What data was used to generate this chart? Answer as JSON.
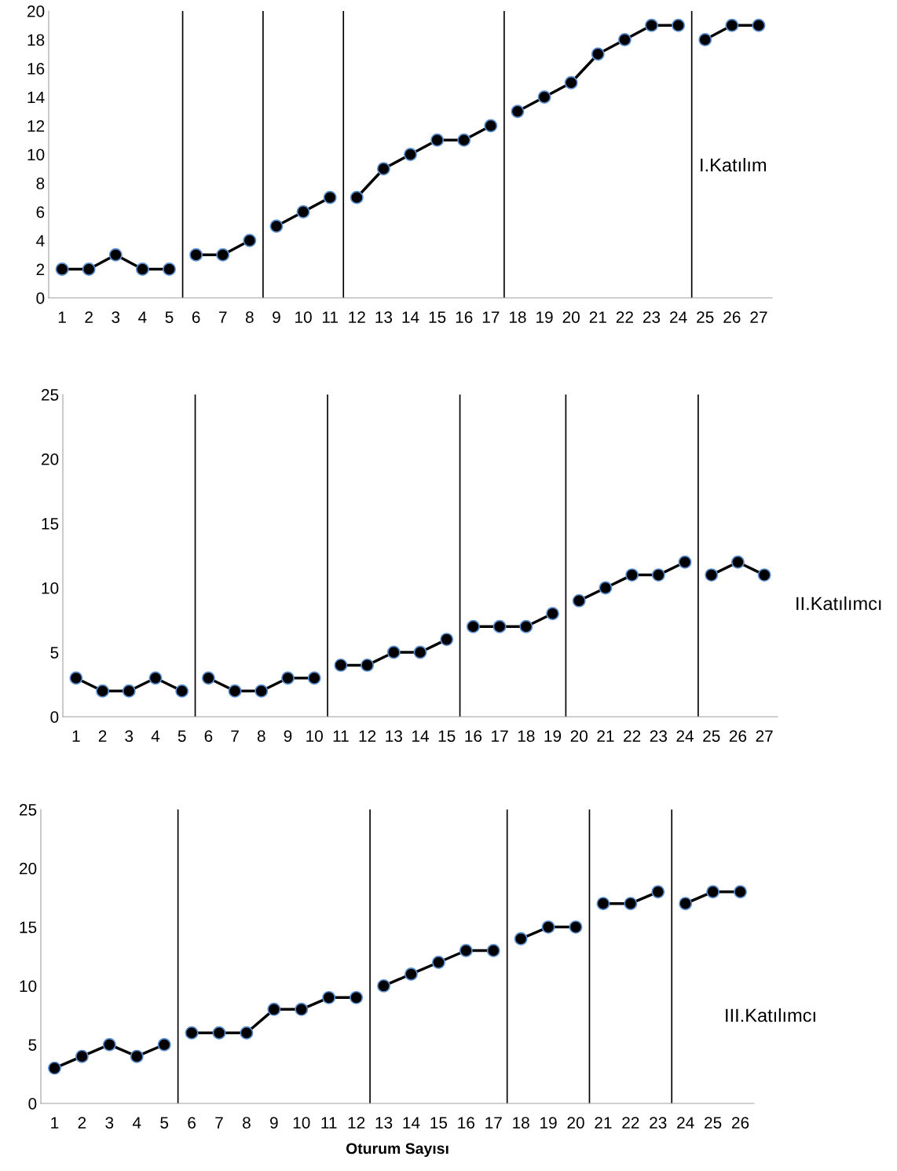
{
  "chart_data": [
    {
      "type": "line",
      "categories": [
        "1",
        "2",
        "3",
        "4",
        "5",
        "6",
        "7",
        "8",
        "9",
        "10",
        "11",
        "12",
        "13",
        "14",
        "15",
        "16",
        "17",
        "18",
        "19",
        "20",
        "21",
        "22",
        "23",
        "24",
        "25",
        "26",
        "27"
      ],
      "series": [
        {
          "color": "#000000",
          "values": [
            2,
            2,
            3,
            2,
            2,
            null,
            null,
            null,
            null,
            null,
            null,
            null,
            null,
            null,
            null,
            null,
            null,
            null,
            null,
            null,
            null,
            null,
            null,
            null,
            null,
            null,
            null
          ]
        },
        {
          "color": "#000000",
          "values": [
            null,
            null,
            null,
            null,
            null,
            3,
            3,
            4,
            null,
            null,
            null,
            null,
            null,
            null,
            null,
            null,
            null,
            null,
            null,
            null,
            null,
            null,
            null,
            null,
            null,
            null,
            null
          ]
        },
        {
          "color": "#000000",
          "values": [
            null,
            null,
            null,
            null,
            null,
            null,
            null,
            null,
            5,
            6,
            7,
            null,
            null,
            null,
            null,
            null,
            null,
            null,
            null,
            null,
            null,
            null,
            null,
            null,
            null,
            null,
            null
          ]
        },
        {
          "color": "#000000",
          "values": [
            null,
            null,
            null,
            null,
            null,
            null,
            null,
            null,
            null,
            null,
            null,
            7,
            9,
            10,
            11,
            11,
            12,
            null,
            null,
            null,
            null,
            null,
            null,
            null,
            null,
            null,
            null
          ]
        },
        {
          "color": "#000000",
          "values": [
            null,
            null,
            null,
            null,
            null,
            null,
            null,
            null,
            null,
            null,
            null,
            null,
            null,
            null,
            null,
            null,
            null,
            13,
            14,
            15,
            17,
            18,
            19,
            19,
            null,
            null,
            null
          ]
        },
        {
          "color": "#000000",
          "values": [
            null,
            null,
            null,
            null,
            null,
            null,
            null,
            null,
            null,
            null,
            null,
            null,
            null,
            null,
            null,
            null,
            null,
            null,
            null,
            null,
            null,
            null,
            null,
            null,
            18,
            19,
            19
          ]
        }
      ],
      "ylim": [
        0,
        20
      ],
      "yticks": [
        0,
        2,
        4,
        6,
        8,
        10,
        12,
        14,
        16,
        18,
        20
      ],
      "marker": "circle",
      "line_style": "solid",
      "grid": false,
      "legend": false,
      "annotations": [
        "I.Katılım"
      ]
    },
    {
      "type": "line",
      "categories": [
        "1",
        "2",
        "3",
        "4",
        "5",
        "6",
        "7",
        "8",
        "9",
        "10",
        "11",
        "12",
        "13",
        "14",
        "15",
        "16",
        "17",
        "18",
        "19",
        "20",
        "21",
        "22",
        "23",
        "24",
        "25",
        "26",
        "27"
      ],
      "series": [
        {
          "color": "#000000",
          "values": [
            3,
            2,
            2,
            3,
            2,
            null,
            null,
            null,
            null,
            null,
            null,
            null,
            null,
            null,
            null,
            null,
            null,
            null,
            null,
            null,
            null,
            null,
            null,
            null,
            null,
            null,
            null
          ]
        },
        {
          "color": "#000000",
          "values": [
            null,
            null,
            null,
            null,
            null,
            3,
            2,
            2,
            3,
            3,
            null,
            null,
            null,
            null,
            null,
            null,
            null,
            null,
            null,
            null,
            null,
            null,
            null,
            null,
            null,
            null,
            null
          ]
        },
        {
          "color": "#000000",
          "values": [
            null,
            null,
            null,
            null,
            null,
            null,
            null,
            null,
            null,
            null,
            4,
            4,
            5,
            5,
            6,
            null,
            null,
            null,
            null,
            null,
            null,
            null,
            null,
            null,
            null,
            null,
            null
          ]
        },
        {
          "color": "#000000",
          "values": [
            null,
            null,
            null,
            null,
            null,
            null,
            null,
            null,
            null,
            null,
            null,
            null,
            null,
            null,
            null,
            7,
            7,
            7,
            8,
            null,
            null,
            null,
            null,
            null,
            null,
            null,
            null
          ]
        },
        {
          "color": "#000000",
          "values": [
            null,
            null,
            null,
            null,
            null,
            null,
            null,
            null,
            null,
            null,
            null,
            null,
            null,
            null,
            null,
            null,
            null,
            null,
            null,
            9,
            10,
            11,
            11,
            12,
            null,
            null,
            null
          ]
        },
        {
          "color": "#000000",
          "values": [
            null,
            null,
            null,
            null,
            null,
            null,
            null,
            null,
            null,
            null,
            null,
            null,
            null,
            null,
            null,
            null,
            null,
            null,
            null,
            null,
            null,
            null,
            null,
            null,
            11,
            12,
            11
          ]
        }
      ],
      "ylim": [
        0,
        25
      ],
      "yticks": [
        0,
        5,
        10,
        15,
        20,
        25
      ],
      "marker": "circle",
      "line_style": "solid",
      "grid": false,
      "legend": false,
      "annotations": [
        "II.Katılımcı"
      ]
    },
    {
      "type": "line",
      "categories": [
        "1",
        "2",
        "3",
        "4",
        "5",
        "6",
        "7",
        "8",
        "9",
        "10",
        "11",
        "12",
        "13",
        "14",
        "15",
        "16",
        "17",
        "18",
        "19",
        "20",
        "21",
        "22",
        "23",
        "24",
        "25",
        "26"
      ],
      "series": [
        {
          "color": "#000000",
          "values": [
            3,
            4,
            5,
            4,
            5,
            null,
            null,
            null,
            null,
            null,
            null,
            null,
            null,
            null,
            null,
            null,
            null,
            null,
            null,
            null,
            null,
            null,
            null,
            null,
            null,
            null
          ]
        },
        {
          "color": "#000000",
          "values": [
            null,
            null,
            null,
            null,
            null,
            6,
            6,
            6,
            8,
            8,
            9,
            9,
            null,
            null,
            null,
            null,
            null,
            null,
            null,
            null,
            null,
            null,
            null,
            null,
            null,
            null
          ]
        },
        {
          "color": "#000000",
          "values": [
            null,
            null,
            null,
            null,
            null,
            null,
            null,
            null,
            null,
            null,
            null,
            null,
            10,
            11,
            12,
            13,
            13,
            null,
            null,
            null,
            null,
            null,
            null,
            null,
            null,
            null
          ]
        },
        {
          "color": "#000000",
          "values": [
            null,
            null,
            null,
            null,
            null,
            null,
            null,
            null,
            null,
            null,
            null,
            null,
            null,
            null,
            null,
            null,
            null,
            14,
            15,
            15,
            null,
            null,
            null,
            null,
            null,
            null
          ]
        },
        {
          "color": "#000000",
          "values": [
            null,
            null,
            null,
            null,
            null,
            null,
            null,
            null,
            null,
            null,
            null,
            null,
            null,
            null,
            null,
            null,
            null,
            null,
            null,
            null,
            17,
            17,
            18,
            null,
            null,
            null
          ]
        },
        {
          "color": "#000000",
          "values": [
            null,
            null,
            null,
            null,
            null,
            null,
            null,
            null,
            null,
            null,
            null,
            null,
            null,
            null,
            null,
            null,
            null,
            null,
            null,
            null,
            null,
            null,
            null,
            17,
            18,
            18
          ]
        }
      ],
      "ylim": [
        0,
        25
      ],
      "yticks": [
        0,
        5,
        10,
        15,
        20,
        25
      ],
      "marker": "circle",
      "line_style": "solid",
      "grid": false,
      "legend": false,
      "xlabel": "Oturum Sayısı",
      "annotations": [
        "III.Katılımcı"
      ]
    }
  ]
}
